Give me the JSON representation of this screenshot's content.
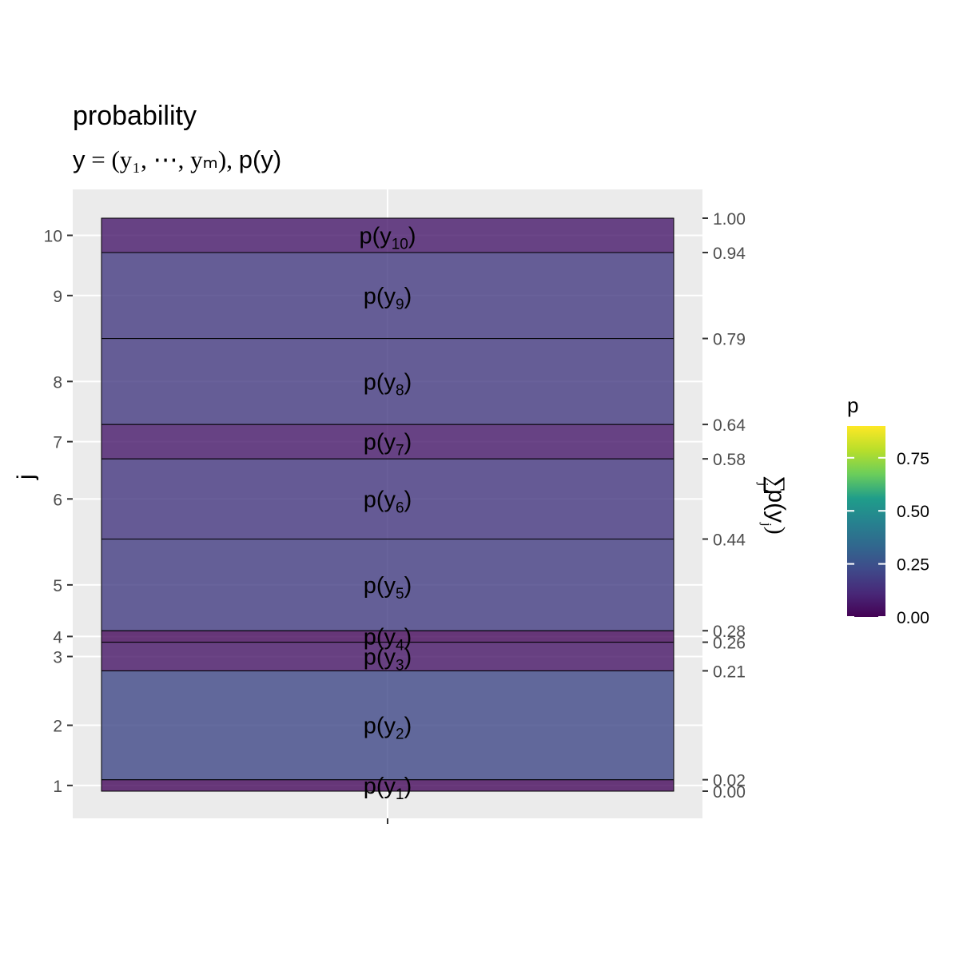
{
  "chart_data": {
    "type": "bar",
    "title": "probability",
    "subtitle": {
      "prefix": "y",
      "eq": "=",
      "tuple": "(y₁, ⋯, yₘ)",
      "sep": ",",
      "suffix": "p(y)"
    },
    "ylabel_left": "j",
    "ylabel_right": "∑ p(y_j)",
    "ylabel_right_parts": {
      "sum": "∑",
      "sub": "j",
      "term": "p(y",
      "term_sub": "j",
      "close": ")"
    },
    "xlabel": "",
    "categories": [
      "1",
      "2",
      "3",
      "4",
      "5",
      "6",
      "7",
      "8",
      "9",
      "10"
    ],
    "bar_labels": [
      {
        "main": "p(y",
        "sub": "1",
        "close": ")"
      },
      {
        "main": "p(y",
        "sub": "2",
        "close": ")"
      },
      {
        "main": "p(y",
        "sub": "3",
        "close": ")"
      },
      {
        "main": "p(y",
        "sub": "4",
        "close": ")"
      },
      {
        "main": "p(y",
        "sub": "5",
        "close": ")"
      },
      {
        "main": "p(y",
        "sub": "6",
        "close": ")"
      },
      {
        "main": "p(y",
        "sub": "7",
        "close": ")"
      },
      {
        "main": "p(y",
        "sub": "8",
        "close": ")"
      },
      {
        "main": "p(y",
        "sub": "9",
        "close": ")"
      },
      {
        "main": "p(y",
        "sub": "10",
        "close": ")"
      }
    ],
    "values": [
      0.02,
      0.19,
      0.05,
      0.02,
      0.16,
      0.14,
      0.06,
      0.15,
      0.15,
      0.06
    ],
    "cumulative_ticks": [
      "0.00",
      "0.02",
      "0.21",
      "0.26",
      "0.28",
      "0.44",
      "0.58",
      "0.64",
      "0.79",
      "0.94",
      "1.00"
    ],
    "cumulative_values": [
      0.0,
      0.02,
      0.21,
      0.26,
      0.28,
      0.44,
      0.58,
      0.64,
      0.79,
      0.94,
      1.0
    ],
    "left_ticks": [
      "1",
      "2",
      "3",
      "4",
      "5",
      "6",
      "7",
      "8",
      "9",
      "10"
    ],
    "ylim": [
      0,
      1
    ],
    "grid": true,
    "legend": {
      "title": "p",
      "position": "right",
      "ticks": [
        "0.00",
        "0.25",
        "0.50",
        "0.75"
      ],
      "tick_values": [
        0.0,
        0.25,
        0.5,
        0.75
      ],
      "range": [
        0,
        0.9
      ],
      "palette": "viridis"
    },
    "colors": {
      "panel": "#EBEBEB",
      "grid": "#FFFFFF",
      "fill_low": "#440154",
      "fill_alpha": 0.8
    }
  }
}
